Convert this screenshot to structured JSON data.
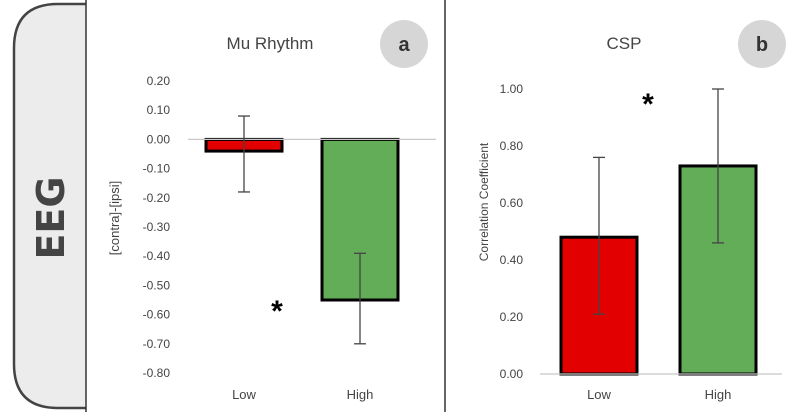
{
  "side_label": "EEG",
  "panels": [
    {
      "letter": "a",
      "title": "Mu Rhythm",
      "ylabel": "[contra]-[ipsi]",
      "significance_marker": "*"
    },
    {
      "letter": "b",
      "title": "CSP",
      "ylabel": "Correlation  Coefficient",
      "significance_marker": "*"
    }
  ],
  "colors": {
    "low": "#e20000",
    "high": "#63ad58",
    "bar_edge": "#000000",
    "badge": "#d6d6d6",
    "axis": "#c8c8c8",
    "text": "#444444"
  },
  "chart_data": [
    {
      "type": "bar",
      "title": "Mu Rhythm",
      "xlabel": "",
      "ylabel": "[contra]-[ipsi]",
      "categories": [
        "Low",
        "High"
      ],
      "values": [
        -0.04,
        -0.55
      ],
      "error_low": [
        -0.18,
        -0.7
      ],
      "error_high": [
        0.08,
        -0.39
      ],
      "ylim": [
        -0.8,
        0.2
      ],
      "yticks": [
        "0.20",
        "0.10",
        "0.00",
        "-0.10",
        "-0.20",
        "-0.30",
        "-0.40",
        "-0.50",
        "-0.60",
        "-0.70",
        "-0.80"
      ],
      "grid": false,
      "legend": "none"
    },
    {
      "type": "bar",
      "title": "CSP",
      "xlabel": "",
      "ylabel": "Correlation  Coefficient",
      "categories": [
        "Low",
        "High"
      ],
      "values": [
        0.48,
        0.73
      ],
      "error_low": [
        0.21,
        0.46
      ],
      "error_high": [
        0.76,
        1.0
      ],
      "ylim": [
        0.0,
        1.0
      ],
      "yticks": [
        "1.00",
        "0.80",
        "0.60",
        "0.40",
        "0.20",
        "0.00"
      ],
      "grid": false,
      "legend": "none"
    }
  ]
}
